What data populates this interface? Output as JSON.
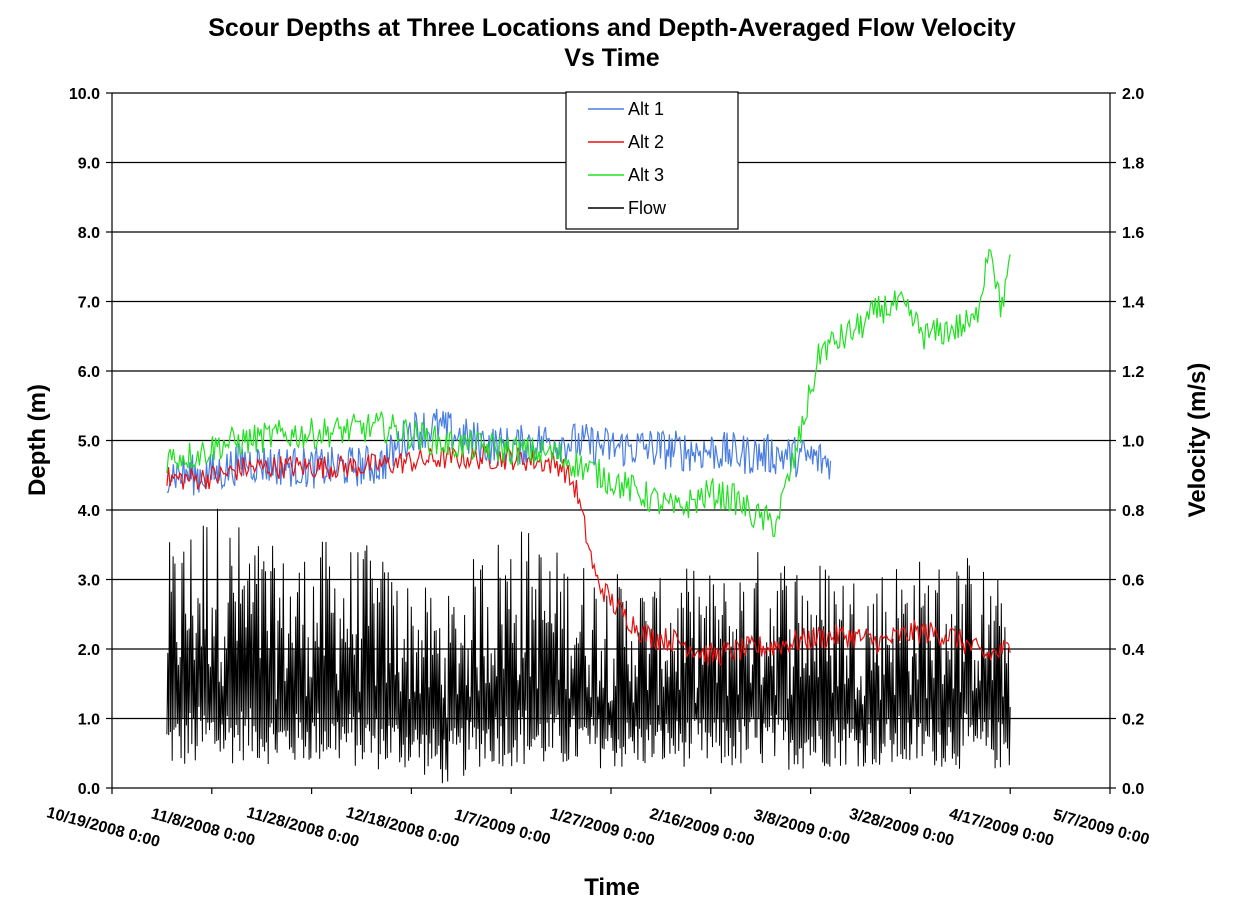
{
  "chart_data": {
    "type": "line",
    "title_line1": "Scour Depths at Three Locations and Depth-Averaged Flow Velocity",
    "title_line2": "Vs Time",
    "xlabel": "Time",
    "ylabel_left": "Depth (m)",
    "ylabel_right": "Velocity (m/s)",
    "ylim_left": [
      0,
      10
    ],
    "ylim_right": [
      0,
      2
    ],
    "xlim": [
      "10/19/2008 0:00",
      "5/7/2009 0:00"
    ],
    "grid": true,
    "legend_position": "top-center",
    "x_tick_labels": [
      "10/19/2008 0:00",
      "11/8/2008 0:00",
      "11/28/2008 0:00",
      "12/18/2008 0:00",
      "1/7/2009 0:00",
      "1/27/2009 0:00",
      "2/16/2009 0:00",
      "3/8/2009 0:00",
      "3/28/2009 0:00",
      "4/17/2009 0:00",
      "5/7/2009 0:00"
    ],
    "y_left_tick_labels": [
      "0.0",
      "1.0",
      "2.0",
      "3.0",
      "4.0",
      "5.0",
      "6.0",
      "7.0",
      "8.0",
      "9.0",
      "10.0"
    ],
    "y_right_tick_labels": [
      "0.0",
      "0.2",
      "0.4",
      "0.6",
      "0.8",
      "1.0",
      "1.2",
      "1.4",
      "1.6",
      "1.8",
      "2.0"
    ],
    "series": [
      {
        "name": "Alt 1",
        "color": "#4a7ee0",
        "axis": "left",
        "x": [
          "10/30/2008",
          "11/5/2008",
          "11/10/2008",
          "11/14/2008",
          "11/20/2008",
          "11/28/2008",
          "12/5/2008",
          "12/12/2008",
          "12/18/2008",
          "12/23/2008",
          "12/28/2008",
          "1/2/2009",
          "1/7/2009",
          "1/10/2009",
          "1/15/2009",
          "1/22/2009",
          "1/27/2009",
          "2/3/2009",
          "2/10/2009",
          "2/16/2009",
          "2/23/2009",
          "3/1/2009",
          "3/8/2009",
          "3/11/2009",
          "3/12/2009"
        ],
        "y": [
          4.55,
          4.5,
          4.55,
          4.7,
          4.65,
          4.6,
          4.62,
          4.65,
          5.15,
          5.2,
          5.05,
          4.95,
          4.9,
          4.95,
          5.0,
          4.95,
          4.9,
          4.9,
          4.85,
          4.85,
          4.8,
          4.8,
          4.75,
          4.7,
          4.65
        ]
      },
      {
        "name": "Alt 2",
        "color": "#e81010",
        "axis": "left",
        "x": [
          "10/30/2008",
          "11/5/2008",
          "11/10/2008",
          "11/14/2008",
          "11/20/2008",
          "11/28/2008",
          "12/5/2008",
          "12/12/2008",
          "12/18/2008",
          "12/25/2008",
          "1/2/2009",
          "1/7/2009",
          "1/13/2009",
          "1/17/2009",
          "1/20/2009",
          "1/24/2009",
          "1/28/2009",
          "2/3/2009",
          "2/10/2009",
          "2/16/2009",
          "2/23/2009",
          "3/1/2009",
          "3/8/2009",
          "3/15/2009",
          "3/22/2009",
          "3/29/2009",
          "4/5/2009",
          "4/12/2009",
          "4/17/2009"
        ],
        "y": [
          4.45,
          4.45,
          4.5,
          4.6,
          4.62,
          4.62,
          4.62,
          4.65,
          4.7,
          4.75,
          4.75,
          4.75,
          4.7,
          4.65,
          4.3,
          3.0,
          2.6,
          2.2,
          2.1,
          1.9,
          2.0,
          2.05,
          2.15,
          2.2,
          2.1,
          2.25,
          2.2,
          1.9,
          2.0
        ]
      },
      {
        "name": "Alt 3",
        "color": "#22e022",
        "axis": "left",
        "x": [
          "10/30/2008",
          "11/5/2008",
          "11/10/2008",
          "11/15/2008",
          "11/22/2008",
          "11/28/2008",
          "12/5/2008",
          "12/12/2008",
          "12/18/2008",
          "12/25/2008",
          "1/2/2009",
          "1/9/2009",
          "1/16/2009",
          "1/22/2009",
          "1/28/2009",
          "2/3/2009",
          "2/9/2009",
          "2/16/2009",
          "2/21/2009",
          "2/25/2009",
          "3/1/2009",
          "3/5/2009",
          "3/10/2009",
          "3/15/2009",
          "3/19/2009",
          "3/22/2009",
          "3/26/2009",
          "3/31/2009",
          "4/5/2009",
          "4/10/2009",
          "4/13/2009",
          "4/15/2009",
          "4/17/2009"
        ],
        "y": [
          4.75,
          4.8,
          4.95,
          5.0,
          5.08,
          5.1,
          5.15,
          5.2,
          5.1,
          4.95,
          4.9,
          4.85,
          4.8,
          4.6,
          4.4,
          4.2,
          4.0,
          4.25,
          4.15,
          3.9,
          3.8,
          4.8,
          6.3,
          6.5,
          6.7,
          6.9,
          6.95,
          6.5,
          6.6,
          6.7,
          7.9,
          6.9,
          7.5
        ]
      },
      {
        "name": "Flow",
        "color": "#000000",
        "axis": "right",
        "x": [
          "10/30/2008",
          "11/8/2008",
          "11/15/2008",
          "11/22/2008",
          "12/1/2008",
          "12/10/2008",
          "12/18/2008",
          "12/25/2008",
          "1/1/2009",
          "1/8/2009",
          "1/15/2009",
          "1/22/2009",
          "1/29/2009",
          "2/5/2009",
          "2/12/2009",
          "2/19/2009",
          "2/26/2009",
          "3/5/2009",
          "3/12/2009",
          "3/19/2009",
          "3/26/2009",
          "4/2/2009",
          "4/9/2009",
          "4/17/2009"
        ],
        "y_min": [
          0.05,
          0.05,
          0.08,
          0.06,
          0.07,
          0.05,
          0.05,
          0.0,
          0.06,
          0.06,
          0.05,
          0.06,
          0.05,
          0.06,
          0.06,
          0.05,
          0.06,
          0.05,
          0.06,
          0.06,
          0.05,
          0.06,
          0.05,
          0.05
        ],
        "y_max": [
          0.7,
          0.85,
          0.75,
          0.68,
          0.72,
          0.7,
          0.6,
          0.55,
          0.7,
          0.78,
          0.7,
          0.66,
          0.62,
          0.6,
          0.64,
          0.62,
          0.7,
          0.68,
          0.66,
          0.62,
          0.68,
          0.66,
          0.68,
          0.58
        ],
        "y_mean": [
          0.25,
          0.3,
          0.27,
          0.25,
          0.27,
          0.26,
          0.24,
          0.2,
          0.26,
          0.29,
          0.26,
          0.25,
          0.24,
          0.23,
          0.24,
          0.24,
          0.26,
          0.25,
          0.25,
          0.24,
          0.25,
          0.25,
          0.26,
          0.22
        ]
      }
    ]
  }
}
